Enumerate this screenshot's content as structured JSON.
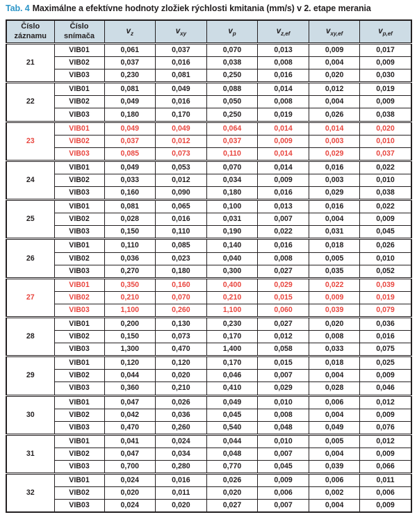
{
  "title": {
    "prefix": "Tab. 4",
    "text": "Maximálne a efektívne hodnoty zložiek rýchlosti kmitania (mm/s) v 2. etape merania"
  },
  "colors": {
    "accent_blue": "#2e96c8",
    "highlight_red": "#e8463f",
    "header_bg": "#cddce5",
    "text": "#231f20",
    "border": "#231f20"
  },
  "table": {
    "headers": [
      {
        "type": "text",
        "label": "Číslo záznamu"
      },
      {
        "type": "text",
        "label": "Číslo snímača"
      },
      {
        "type": "var",
        "base": "v",
        "sub": "z"
      },
      {
        "type": "var",
        "base": "v",
        "sub": "xy"
      },
      {
        "type": "var",
        "base": "v",
        "sub": "p"
      },
      {
        "type": "var",
        "base": "v",
        "sub": "z,ef"
      },
      {
        "type": "var",
        "base": "v",
        "sub": "xy,ef"
      },
      {
        "type": "var",
        "base": "v",
        "sub": "p,ef"
      }
    ],
    "groups": [
      {
        "record": "21",
        "highlight": false,
        "rows": [
          {
            "sensor": "VIB01",
            "values": [
              "0,061",
              "0,037",
              "0,070",
              "0,013",
              "0,009",
              "0,017"
            ]
          },
          {
            "sensor": "VIB02",
            "values": [
              "0,037",
              "0,016",
              "0,038",
              "0,008",
              "0,004",
              "0,009"
            ]
          },
          {
            "sensor": "VIB03",
            "values": [
              "0,230",
              "0,081",
              "0,250",
              "0,016",
              "0,020",
              "0,030"
            ]
          }
        ]
      },
      {
        "record": "22",
        "highlight": false,
        "rows": [
          {
            "sensor": "VIB01",
            "values": [
              "0,081",
              "0,049",
              "0,088",
              "0,014",
              "0,012",
              "0,019"
            ]
          },
          {
            "sensor": "VIB02",
            "values": [
              "0,049",
              "0,016",
              "0,050",
              "0,008",
              "0,004",
              "0,009"
            ]
          },
          {
            "sensor": "VIB03",
            "values": [
              "0,180",
              "0,170",
              "0,250",
              "0,019",
              "0,026",
              "0,038"
            ]
          }
        ]
      },
      {
        "record": "23",
        "highlight": true,
        "rows": [
          {
            "sensor": "VIB01",
            "values": [
              "0,049",
              "0,049",
              "0,064",
              "0,014",
              "0,014",
              "0,020"
            ]
          },
          {
            "sensor": "VIB02",
            "values": [
              "0,037",
              "0,012",
              "0,037",
              "0,009",
              "0,003",
              "0,010"
            ]
          },
          {
            "sensor": "VIB03",
            "values": [
              "0,085",
              "0,073",
              "0,110",
              "0,014",
              "0,029",
              "0,037"
            ]
          }
        ]
      },
      {
        "record": "24",
        "highlight": false,
        "rows": [
          {
            "sensor": "VIB01",
            "values": [
              "0,049",
              "0,053",
              "0,070",
              "0,014",
              "0,016",
              "0,022"
            ]
          },
          {
            "sensor": "VIB02",
            "values": [
              "0,033",
              "0,012",
              "0,034",
              "0,009",
              "0,003",
              "0,010"
            ]
          },
          {
            "sensor": "VIB03",
            "values": [
              "0,160",
              "0,090",
              "0,180",
              "0,016",
              "0,029",
              "0,038"
            ]
          }
        ]
      },
      {
        "record": "25",
        "highlight": false,
        "rows": [
          {
            "sensor": "VIB01",
            "values": [
              "0,081",
              "0,065",
              "0,100",
              "0,013",
              "0,016",
              "0,022"
            ]
          },
          {
            "sensor": "VIB02",
            "values": [
              "0,028",
              "0,016",
              "0,031",
              "0,007",
              "0,004",
              "0,009"
            ]
          },
          {
            "sensor": "VIB03",
            "values": [
              "0,150",
              "0,110",
              "0,190",
              "0,022",
              "0,031",
              "0,045"
            ]
          }
        ]
      },
      {
        "record": "26",
        "highlight": false,
        "rows": [
          {
            "sensor": "VIB01",
            "values": [
              "0,110",
              "0,085",
              "0,140",
              "0,016",
              "0,018",
              "0,026"
            ]
          },
          {
            "sensor": "VIB02",
            "values": [
              "0,036",
              "0,023",
              "0,040",
              "0,008",
              "0,005",
              "0,010"
            ]
          },
          {
            "sensor": "VIB03",
            "values": [
              "0,270",
              "0,180",
              "0,300",
              "0,027",
              "0,035",
              "0,052"
            ]
          }
        ]
      },
      {
        "record": "27",
        "highlight": true,
        "rows": [
          {
            "sensor": "VIB01",
            "values": [
              "0,350",
              "0,160",
              "0,400",
              "0,029",
              "0,022",
              "0,039"
            ]
          },
          {
            "sensor": "VIB02",
            "values": [
              "0,210",
              "0,070",
              "0,210",
              "0,015",
              "0,009",
              "0,019"
            ]
          },
          {
            "sensor": "VIB03",
            "values": [
              "1,100",
              "0,260",
              "1,100",
              "0,060",
              "0,039",
              "0,079"
            ]
          }
        ]
      },
      {
        "record": "28",
        "highlight": false,
        "rows": [
          {
            "sensor": "VIB01",
            "values": [
              "0,200",
              "0,130",
              "0,230",
              "0,027",
              "0,020",
              "0,036"
            ]
          },
          {
            "sensor": "VIB02",
            "values": [
              "0,150",
              "0,073",
              "0,170",
              "0,012",
              "0,008",
              "0,016"
            ]
          },
          {
            "sensor": "VIB03",
            "values": [
              "1,300",
              "0,470",
              "1,400",
              "0,058",
              "0,033",
              "0,075"
            ]
          }
        ]
      },
      {
        "record": "29",
        "highlight": false,
        "rows": [
          {
            "sensor": "VIB01",
            "values": [
              "0,120",
              "0,120",
              "0,170",
              "0,015",
              "0,018",
              "0,025"
            ]
          },
          {
            "sensor": "VIB02",
            "values": [
              "0,044",
              "0,020",
              "0,046",
              "0,007",
              "0,004",
              "0,009"
            ]
          },
          {
            "sensor": "VIB03",
            "values": [
              "0,360",
              "0,210",
              "0,410",
              "0,029",
              "0,028",
              "0,046"
            ]
          }
        ]
      },
      {
        "record": "30",
        "highlight": false,
        "rows": [
          {
            "sensor": "VIB01",
            "values": [
              "0,047",
              "0,026",
              "0,049",
              "0,010",
              "0,006",
              "0,012"
            ]
          },
          {
            "sensor": "VIB02",
            "values": [
              "0,042",
              "0,036",
              "0,045",
              "0,008",
              "0,004",
              "0,009"
            ]
          },
          {
            "sensor": "VIB03",
            "values": [
              "0,470",
              "0,260",
              "0,540",
              "0,048",
              "0,049",
              "0,076"
            ]
          }
        ]
      },
      {
        "record": "31",
        "highlight": false,
        "rows": [
          {
            "sensor": "VIB01",
            "values": [
              "0,041",
              "0,024",
              "0,044",
              "0,010",
              "0,005",
              "0,012"
            ]
          },
          {
            "sensor": "VIB02",
            "values": [
              "0,047",
              "0,034",
              "0,048",
              "0,007",
              "0,004",
              "0,009"
            ]
          },
          {
            "sensor": "VIB03",
            "values": [
              "0,700",
              "0,280",
              "0,770",
              "0,045",
              "0,039",
              "0,066"
            ]
          }
        ]
      },
      {
        "record": "32",
        "highlight": false,
        "rows": [
          {
            "sensor": "VIB01",
            "values": [
              "0,024",
              "0,016",
              "0,026",
              "0,009",
              "0,006",
              "0,011"
            ]
          },
          {
            "sensor": "VIB02",
            "values": [
              "0,020",
              "0,011",
              "0,020",
              "0,006",
              "0,002",
              "0,006"
            ]
          },
          {
            "sensor": "VIB03",
            "values": [
              "0,024",
              "0,020",
              "0,027",
              "0,007",
              "0,004",
              "0,009"
            ]
          }
        ]
      }
    ]
  }
}
